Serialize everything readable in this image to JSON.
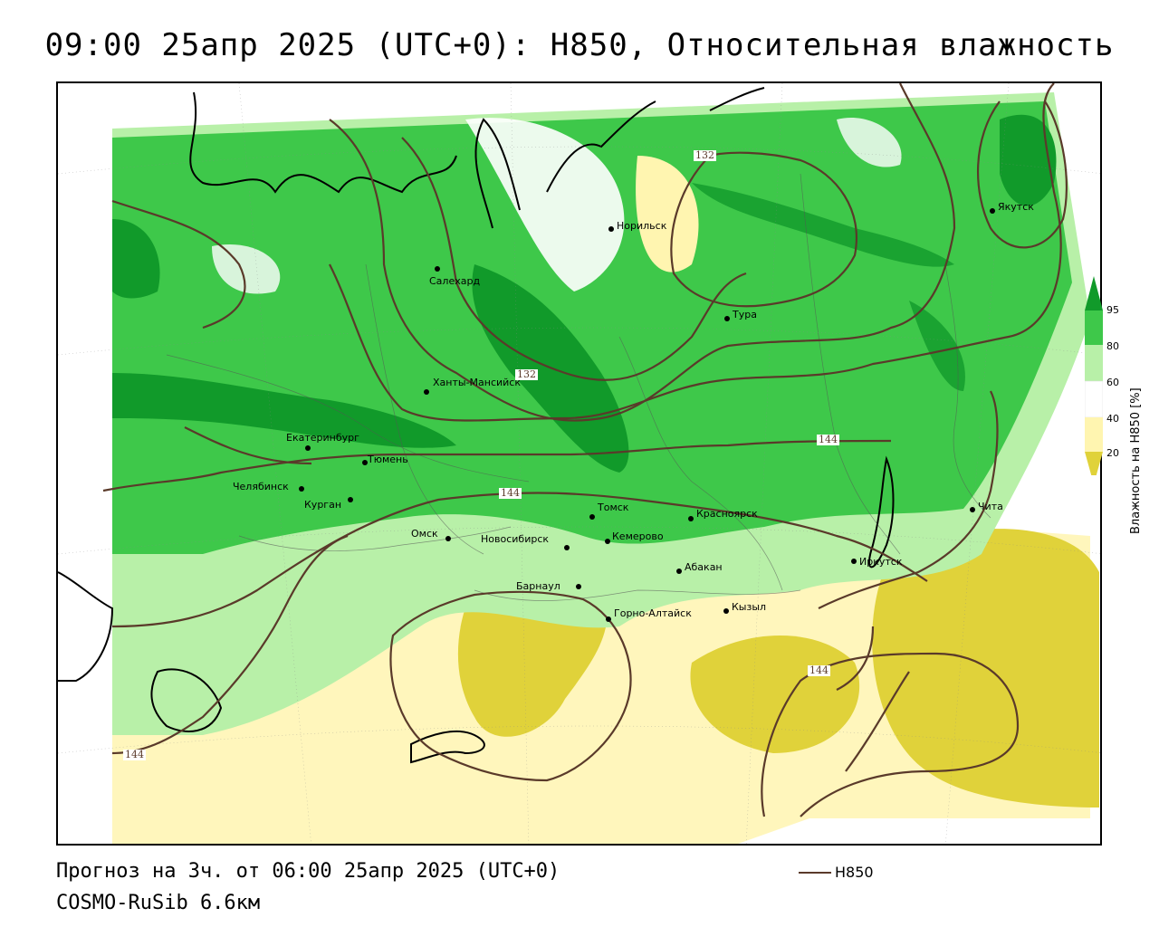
{
  "title": "09:00 25апр 2025 (UTC+0): H850, Относительная влажность",
  "footer": {
    "forecast": "Прогноз на 3ч. от 06:00 25апр 2025 (UTC+0)",
    "model": "COSMO-RuSib 6.6км",
    "line_legend": "H850"
  },
  "legend": {
    "title": "Влажность на H850 [%]",
    "ticks": [
      "95",
      "80",
      "60",
      "40",
      "20"
    ]
  },
  "cities": [
    {
      "name": "Якутск"
    },
    {
      "name": "Норильск"
    },
    {
      "name": "Салехард"
    },
    {
      "name": "Тура"
    },
    {
      "name": "Ханты-Мансийск"
    },
    {
      "name": "Екатеринбург"
    },
    {
      "name": "Тюмень"
    },
    {
      "name": "Челябинск"
    },
    {
      "name": "Курган"
    },
    {
      "name": "Омск"
    },
    {
      "name": "Томск"
    },
    {
      "name": "Красноярск"
    },
    {
      "name": "Новосибирск"
    },
    {
      "name": "Кемерово"
    },
    {
      "name": "Абакан"
    },
    {
      "name": "Барнаул"
    },
    {
      "name": "Горно-Алтайск"
    },
    {
      "name": "Кызыл"
    },
    {
      "name": "Иркутск"
    },
    {
      "name": "Чита"
    }
  ],
  "contour_labels": [
    "132",
    "132",
    "144",
    "144",
    "144",
    "144"
  ],
  "colors": {
    "contour": "#5a3a2a",
    "rh_95": "#119a2a",
    "rh_80": "#3ec84a",
    "rh_60": "#b8f0a8",
    "rh_40": "#ffffff",
    "rh_20": "#fff5b0",
    "rh_low": "#e0d23a"
  }
}
